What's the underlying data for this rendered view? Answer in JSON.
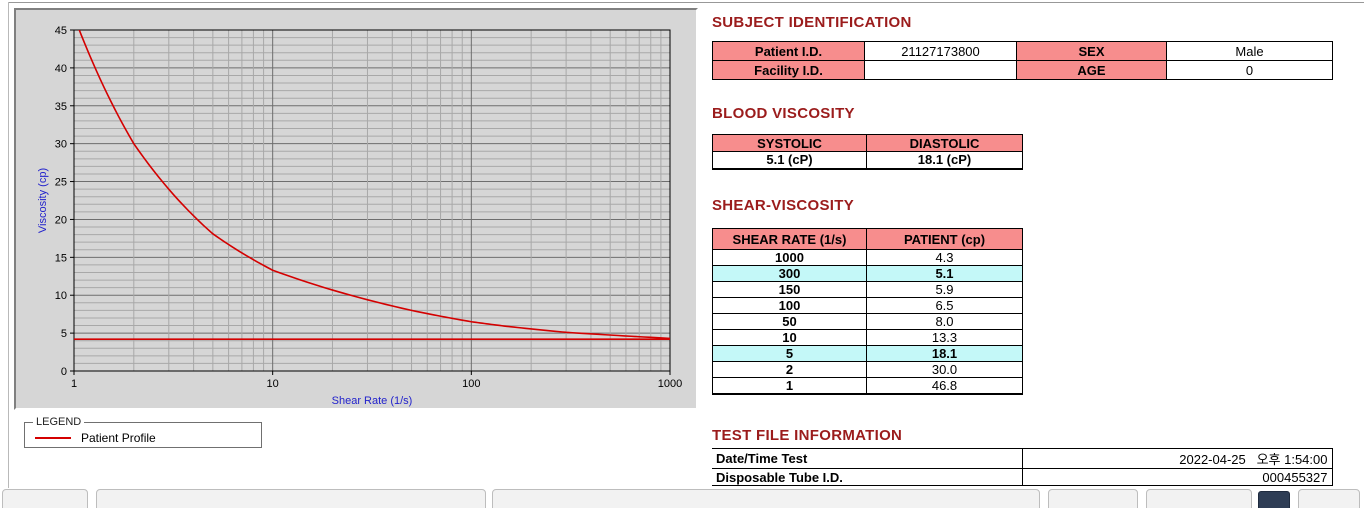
{
  "headings": {
    "subject": "SUBJECT IDENTIFICATION",
    "blood": "BLOOD VISCOSITY",
    "shear": "SHEAR-VISCOSITY",
    "testfile": "TEST FILE INFORMATION"
  },
  "subject_table": {
    "rows": [
      {
        "label1": "Patient I.D.",
        "value1": "21127173800",
        "label2": "SEX",
        "value2": "Male"
      },
      {
        "label1": "Facility I.D.",
        "value1": "",
        "label2": "AGE",
        "value2": "0"
      }
    ]
  },
  "blood_table": {
    "headers": [
      "SYSTOLIC",
      "DIASTOLIC"
    ],
    "values": [
      "5.1 (cP)",
      "18.1 (cP)"
    ]
  },
  "shear_table": {
    "headers": [
      "SHEAR RATE (1/s)",
      "PATIENT (cp)"
    ],
    "rows": [
      {
        "rate": "1000",
        "value": "4.3",
        "highlight": false
      },
      {
        "rate": "300",
        "value": "5.1",
        "highlight": true
      },
      {
        "rate": "150",
        "value": "5.9",
        "highlight": false
      },
      {
        "rate": "100",
        "value": "6.5",
        "highlight": false
      },
      {
        "rate": "50",
        "value": "8.0",
        "highlight": false
      },
      {
        "rate": "10",
        "value": "13.3",
        "highlight": false
      },
      {
        "rate": "5",
        "value": "18.1",
        "highlight": true
      },
      {
        "rate": "2",
        "value": "30.0",
        "highlight": false
      },
      {
        "rate": "1",
        "value": "46.8",
        "highlight": false
      }
    ]
  },
  "test_file": {
    "rows": [
      {
        "label": "Date/Time Test",
        "value": "2022-04-25   오후 1:54:00"
      },
      {
        "label": "Disposable Tube I.D.",
        "value": "000455327"
      }
    ]
  },
  "legend": {
    "box_label": "LEGEND",
    "series_label": "Patient Profile"
  },
  "colors": {
    "header_pink": "#f78d8d",
    "heading_text": "#9b1c1c",
    "highlight_cyan": "#c4f8f8",
    "curve_red": "#d40000",
    "axis_label_blue": "#2222cc",
    "chart_bg": "#d6d6d6"
  },
  "chart_data": {
    "type": "line",
    "title": "",
    "xlabel": "Shear Rate (1/s)",
    "ylabel": "Viscosity (cp)",
    "x_scale": "log",
    "xlim": [
      1,
      1000
    ],
    "ylim": [
      0,
      45
    ],
    "x_major_ticks": [
      1,
      10,
      100,
      1000
    ],
    "y_major_ticks": [
      0,
      5,
      10,
      15,
      20,
      25,
      30,
      35,
      40,
      45
    ],
    "y_minor_step": 1,
    "grid": true,
    "legend_position": "below-left",
    "series": [
      {
        "name": "Patient Profile",
        "color": "#d40000",
        "x": [
          1,
          2,
          5,
          10,
          50,
          100,
          150,
          300,
          1000
        ],
        "y": [
          46.8,
          30.0,
          18.1,
          13.3,
          8.0,
          6.5,
          5.9,
          5.1,
          4.3
        ]
      }
    ],
    "reference_line": {
      "y": 4.2,
      "color": "#d40000"
    }
  }
}
